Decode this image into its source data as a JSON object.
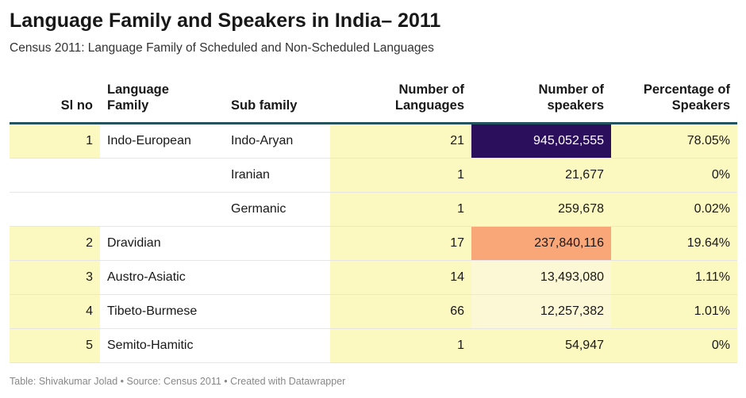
{
  "title": "Language Family and Speakers in India– 2011",
  "subtitle": "Census 2011: Language Family of Scheduled and Non-Scheduled Languages",
  "footer": "Table: Shivakumar Jolad • Source: Census 2011 • Created with Datawrapper",
  "chart_data": {
    "type": "table",
    "columns": [
      "Sl no",
      "Language Family",
      "Sub family",
      "Number of Languages",
      "Number of speakers",
      "Percentage of Speakers"
    ],
    "rows": [
      {
        "sl": "1",
        "family": "Indo-European",
        "sub": "Indo-Aryan",
        "langs": "21",
        "speakers": "945,052,555",
        "pct": "78.05%"
      },
      {
        "sl": "",
        "family": "",
        "sub": "Iranian",
        "langs": "1",
        "speakers": "21,677",
        "pct": "0%"
      },
      {
        "sl": "",
        "family": "",
        "sub": "Germanic",
        "langs": "1",
        "speakers": "259,678",
        "pct": "0.02%"
      },
      {
        "sl": "2",
        "family": "Dravidian",
        "sub": "",
        "langs": "17",
        "speakers": "237,840,116",
        "pct": "19.64%"
      },
      {
        "sl": "3",
        "family": "Austro-Asiatic",
        "sub": "",
        "langs": "14",
        "speakers": "13,493,080",
        "pct": "1.11%"
      },
      {
        "sl": "4",
        "family": "Tibeto-Burmese",
        "sub": "",
        "langs": "66",
        "speakers": "12,257,382",
        "pct": "1.01%"
      },
      {
        "sl": "5",
        "family": "Semito-Hamitic",
        "sub": "",
        "langs": "1",
        "speakers": "54,947",
        "pct": "0%"
      }
    ],
    "colors": {
      "highlight": "#fcf9c0",
      "speakers_highest": "#2c0f5c",
      "speakers_second": "#f9a679",
      "speakers_low": "#fcf7d4",
      "header_rule": "#24535e"
    }
  }
}
